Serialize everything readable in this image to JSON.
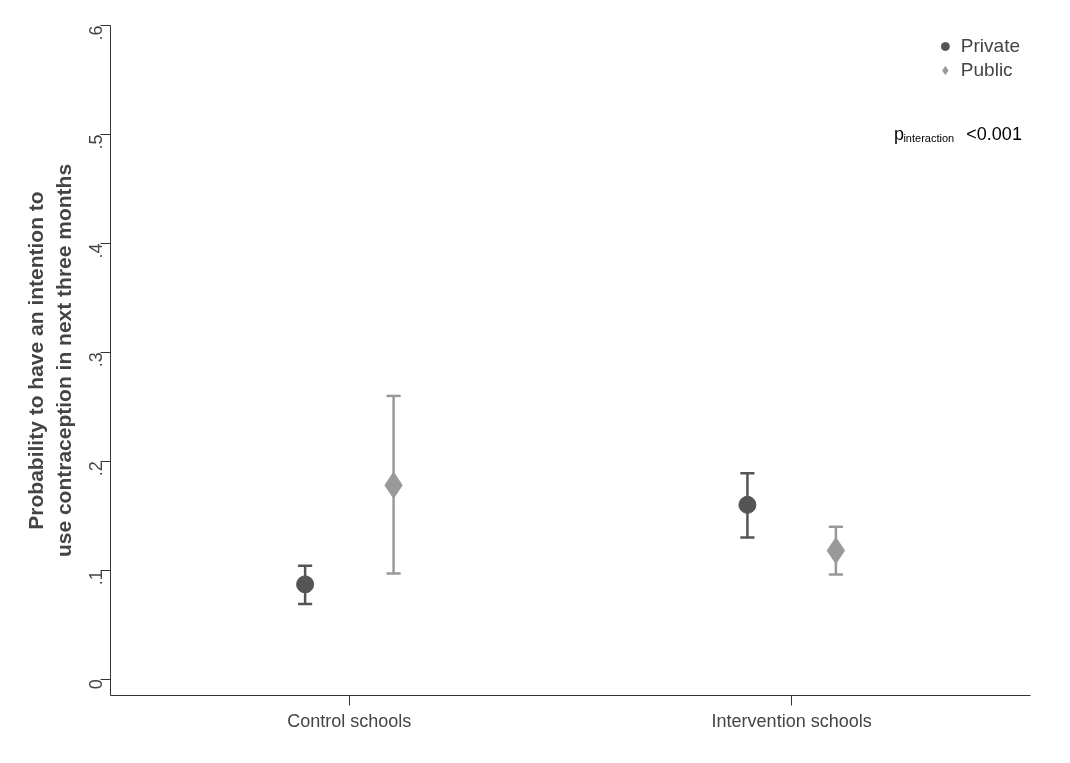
{
  "chart_data": {
    "type": "scatter",
    "ylabel": "Probability to have an intention to\nuse contraception in next three months",
    "categories": [
      "Control schools",
      "Intervention schools"
    ],
    "series": [
      {
        "name": "Private",
        "color": "#555555",
        "marker": "circle",
        "values": [
          0.087,
          0.16
        ],
        "errors": [
          [
            0.069,
            0.104
          ],
          [
            0.13,
            0.189
          ]
        ]
      },
      {
        "name": "Public",
        "color": "#999999",
        "marker": "diamond",
        "values": [
          0.178,
          0.118
        ],
        "errors": [
          [
            0.097,
            0.26
          ],
          [
            0.096,
            0.14
          ]
        ]
      }
    ],
    "ylim": [
      -0.015,
      0.6
    ],
    "yticks": [
      0,
      {
        "value": 0.1,
        "label": ".1"
      },
      {
        "value": 0.2,
        "label": ".2"
      },
      {
        "value": 0.3,
        "label": ".3"
      },
      {
        "value": 0.4,
        "label": ".4"
      },
      {
        "value": 0.5,
        "label": ".5"
      },
      {
        "value": 0.6,
        "label": ".6"
      }
    ],
    "annotations": [
      "p$_{interaction}$<0.001"
    ],
    "legend": "top right",
    "grid": false
  }
}
